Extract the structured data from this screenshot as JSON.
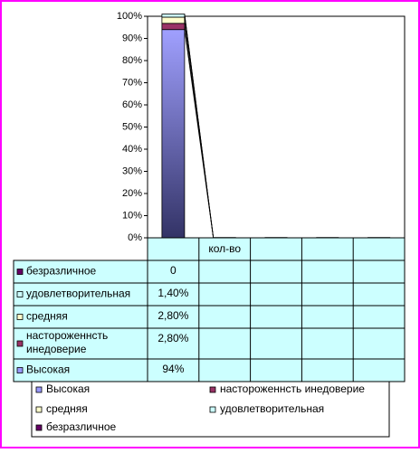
{
  "chart_data": {
    "type": "bar",
    "stacked": true,
    "categories": [
      null,
      "кол-во",
      null,
      null,
      null
    ],
    "series": [
      {
        "name": "Высокая",
        "color": "#9999ff",
        "values": [
          94,
          null,
          null,
          null,
          null
        ],
        "value_labels": [
          "94%",
          null,
          null,
          null,
          null
        ]
      },
      {
        "name": "настороженнсть инедоверие",
        "color": "#993366",
        "values": [
          2.8,
          null,
          null,
          null,
          null
        ],
        "value_labels": [
          "2,80%",
          null,
          null,
          null,
          null
        ]
      },
      {
        "name": "средняя",
        "color": "#ffffcc",
        "values": [
          2.8,
          null,
          null,
          null,
          null
        ],
        "value_labels": [
          "2,80%",
          null,
          null,
          null,
          null
        ]
      },
      {
        "name": "удовлетворительная",
        "color": "#ccffff",
        "values": [
          1.4,
          null,
          null,
          null,
          null
        ],
        "value_labels": [
          "1,40%",
          null,
          null,
          null,
          null
        ]
      },
      {
        "name": "безразличное",
        "color": "#660066",
        "values": [
          0,
          null,
          null,
          null,
          null
        ]
      }
    ],
    "ylim": [
      0,
      100
    ],
    "yticks": [
      {
        "value": 0,
        "label": "0%"
      },
      {
        "value": 10,
        "label": "10%"
      },
      {
        "value": 20,
        "label": "20%"
      },
      {
        "value": 30,
        "label": "30%"
      },
      {
        "value": 40,
        "label": "40%"
      },
      {
        "value": 50,
        "label": "50%"
      },
      {
        "value": 60,
        "label": "60%"
      },
      {
        "value": 70,
        "label": "70%"
      },
      {
        "value": 80,
        "label": "80%"
      },
      {
        "value": 90,
        "label": "90%"
      },
      {
        "value": 100,
        "label": "100%"
      }
    ]
  }
}
